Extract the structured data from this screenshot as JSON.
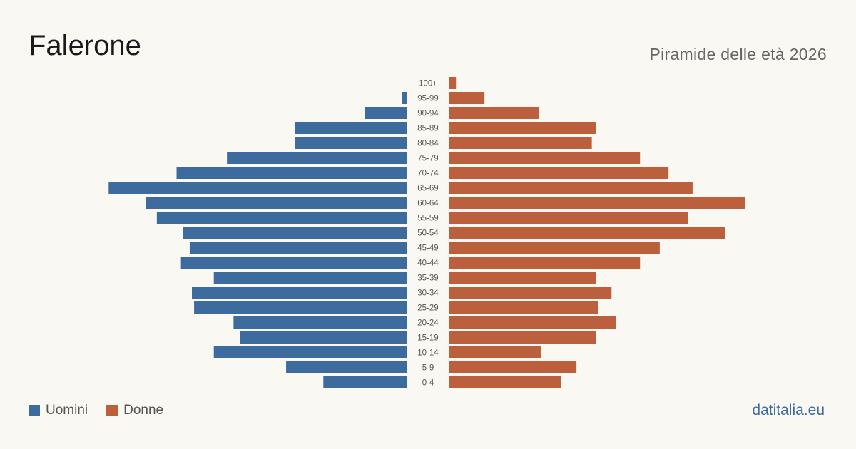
{
  "header": {
    "title": "Falerone",
    "subtitle": "Piramide delle età 2026"
  },
  "legend": {
    "items": [
      {
        "label": "Uomini",
        "color": "#3d6b9e"
      },
      {
        "label": "Donne",
        "color": "#bc5f3d"
      }
    ]
  },
  "footer": {
    "source": "datitalia.eu",
    "source_color": "#3d6b9e"
  },
  "chart_data": {
    "type": "bar",
    "orientation": "horizontal-pyramid",
    "categories": [
      "100+",
      "95-99",
      "90-94",
      "85-89",
      "80-84",
      "75-79",
      "70-74",
      "65-69",
      "60-64",
      "55-59",
      "50-54",
      "45-49",
      "40-44",
      "35-39",
      "30-34",
      "25-29",
      "20-24",
      "15-19",
      "10-14",
      "5-9",
      "0-4"
    ],
    "series": [
      {
        "name": "Uomini",
        "color": "#3d6b9e",
        "values": [
          0,
          2,
          19,
          51,
          51,
          82,
          105,
          136,
          119,
          114,
          102,
          99,
          103,
          88,
          98,
          97,
          79,
          76,
          88,
          55,
          38
        ]
      },
      {
        "name": "Donne",
        "color": "#bc5f3d",
        "values": [
          3,
          16,
          41,
          67,
          65,
          87,
          100,
          111,
          135,
          109,
          126,
          96,
          87,
          67,
          74,
          68,
          76,
          67,
          42,
          58,
          51
        ]
      }
    ],
    "xlim": [
      0,
      140
    ],
    "grid": false,
    "legend_position": "bottom-left"
  }
}
